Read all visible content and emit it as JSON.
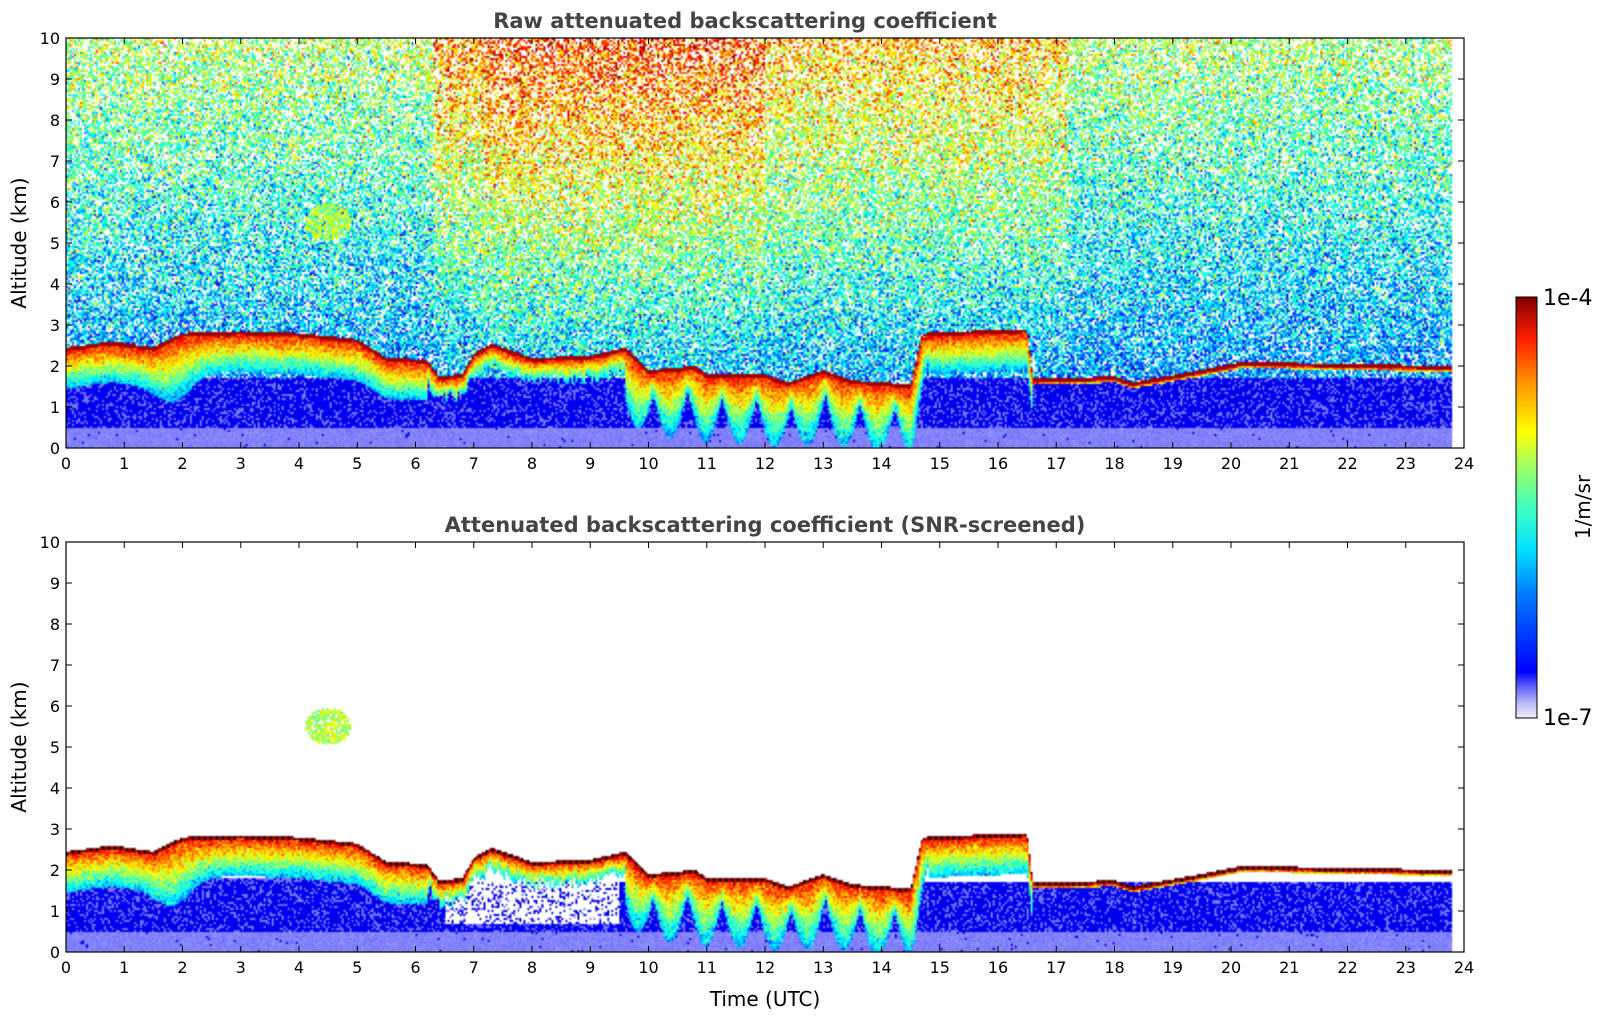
{
  "chart_data": [
    {
      "type": "heatmap",
      "title": "Raw attenuated backscattering coefficient",
      "xlabel": "",
      "ylabel": "Altitude (km)",
      "xlim": [
        0,
        24
      ],
      "ylim": [
        0,
        10
      ],
      "x_ticks": [
        "0",
        "1",
        "2",
        "3",
        "4",
        "5",
        "6",
        "7",
        "8",
        "9",
        "10",
        "11",
        "12",
        "13",
        "14",
        "15",
        "16",
        "17",
        "18",
        "19",
        "20",
        "21",
        "22",
        "23",
        "24"
      ],
      "y_ticks": [
        "0",
        "1",
        "2",
        "3",
        "4",
        "5",
        "6",
        "7",
        "8",
        "9",
        "10"
      ],
      "data_extent_x": [
        0,
        23.8
      ],
      "screened": false
    },
    {
      "type": "heatmap",
      "title": "Attenuated backscattering coefficient (SNR-screened)",
      "xlabel": "Time (UTC)",
      "ylabel": "Altitude (km)",
      "xlim": [
        0,
        24
      ],
      "ylim": [
        0,
        10
      ],
      "x_ticks": [
        "0",
        "1",
        "2",
        "3",
        "4",
        "5",
        "6",
        "7",
        "8",
        "9",
        "10",
        "11",
        "12",
        "13",
        "14",
        "15",
        "16",
        "17",
        "18",
        "19",
        "20",
        "21",
        "22",
        "23",
        "24"
      ],
      "y_ticks": [
        "0",
        "1",
        "2",
        "3",
        "4",
        "5",
        "6",
        "7",
        "8",
        "9",
        "10"
      ],
      "data_extent_x": [
        0,
        23.8
      ],
      "screened": true
    }
  ],
  "colorbar": {
    "max_label": "1e-4",
    "min_label": "1e-7",
    "unit": "1/m/sr",
    "scale": "log",
    "colormap": "jet"
  },
  "colors": {
    "cloud_top_black": "#000000",
    "background_blue": "#0a14f5"
  }
}
